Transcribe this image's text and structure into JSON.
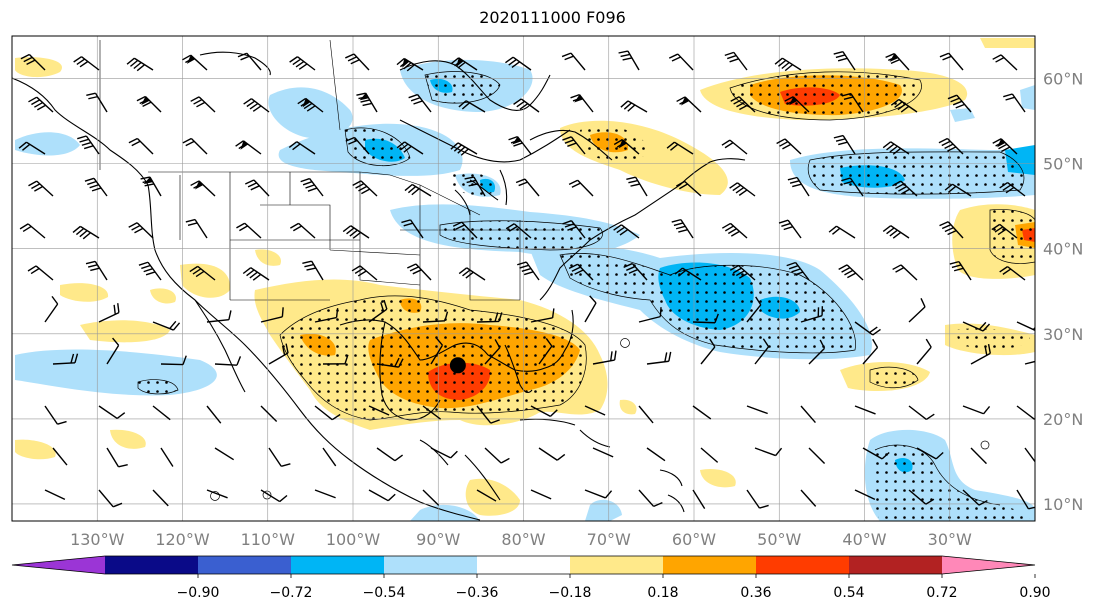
{
  "title": "2020111000 F096",
  "map": {
    "lon_range": [
      -140,
      -20
    ],
    "lat_range": [
      8,
      65
    ],
    "lon_labels": [
      "130°W",
      "120°W",
      "110°W",
      "100°W",
      "90°W",
      "80°W",
      "70°W",
      "60°W",
      "50°W",
      "40°W",
      "30°W"
    ],
    "lon_values": [
      -130,
      -120,
      -110,
      -100,
      -90,
      -80,
      -70,
      -60,
      -50,
      -40,
      -30
    ],
    "lat_labels": [
      "60°N",
      "50°N",
      "40°N",
      "30°N",
      "20°N",
      "10°N"
    ],
    "lat_values": [
      60,
      50,
      40,
      30,
      20,
      10
    ],
    "marker": {
      "lon": -87.7,
      "lat": 26.3
    }
  },
  "colorbar": {
    "ticks": [
      "−0.90",
      "−0.72",
      "−0.54",
      "−0.36",
      "−0.18",
      "0.18",
      "0.36",
      "0.54",
      "0.72",
      "0.90"
    ],
    "colors": [
      "#9b35d6",
      "#0a0a88",
      "#3a5fd0",
      "#00b5f5",
      "#aee0fb",
      "#ffffff",
      "#ffe98a",
      "#ffa500",
      "#ff3c00",
      "#b22222",
      "#ff88b8"
    ]
  }
}
